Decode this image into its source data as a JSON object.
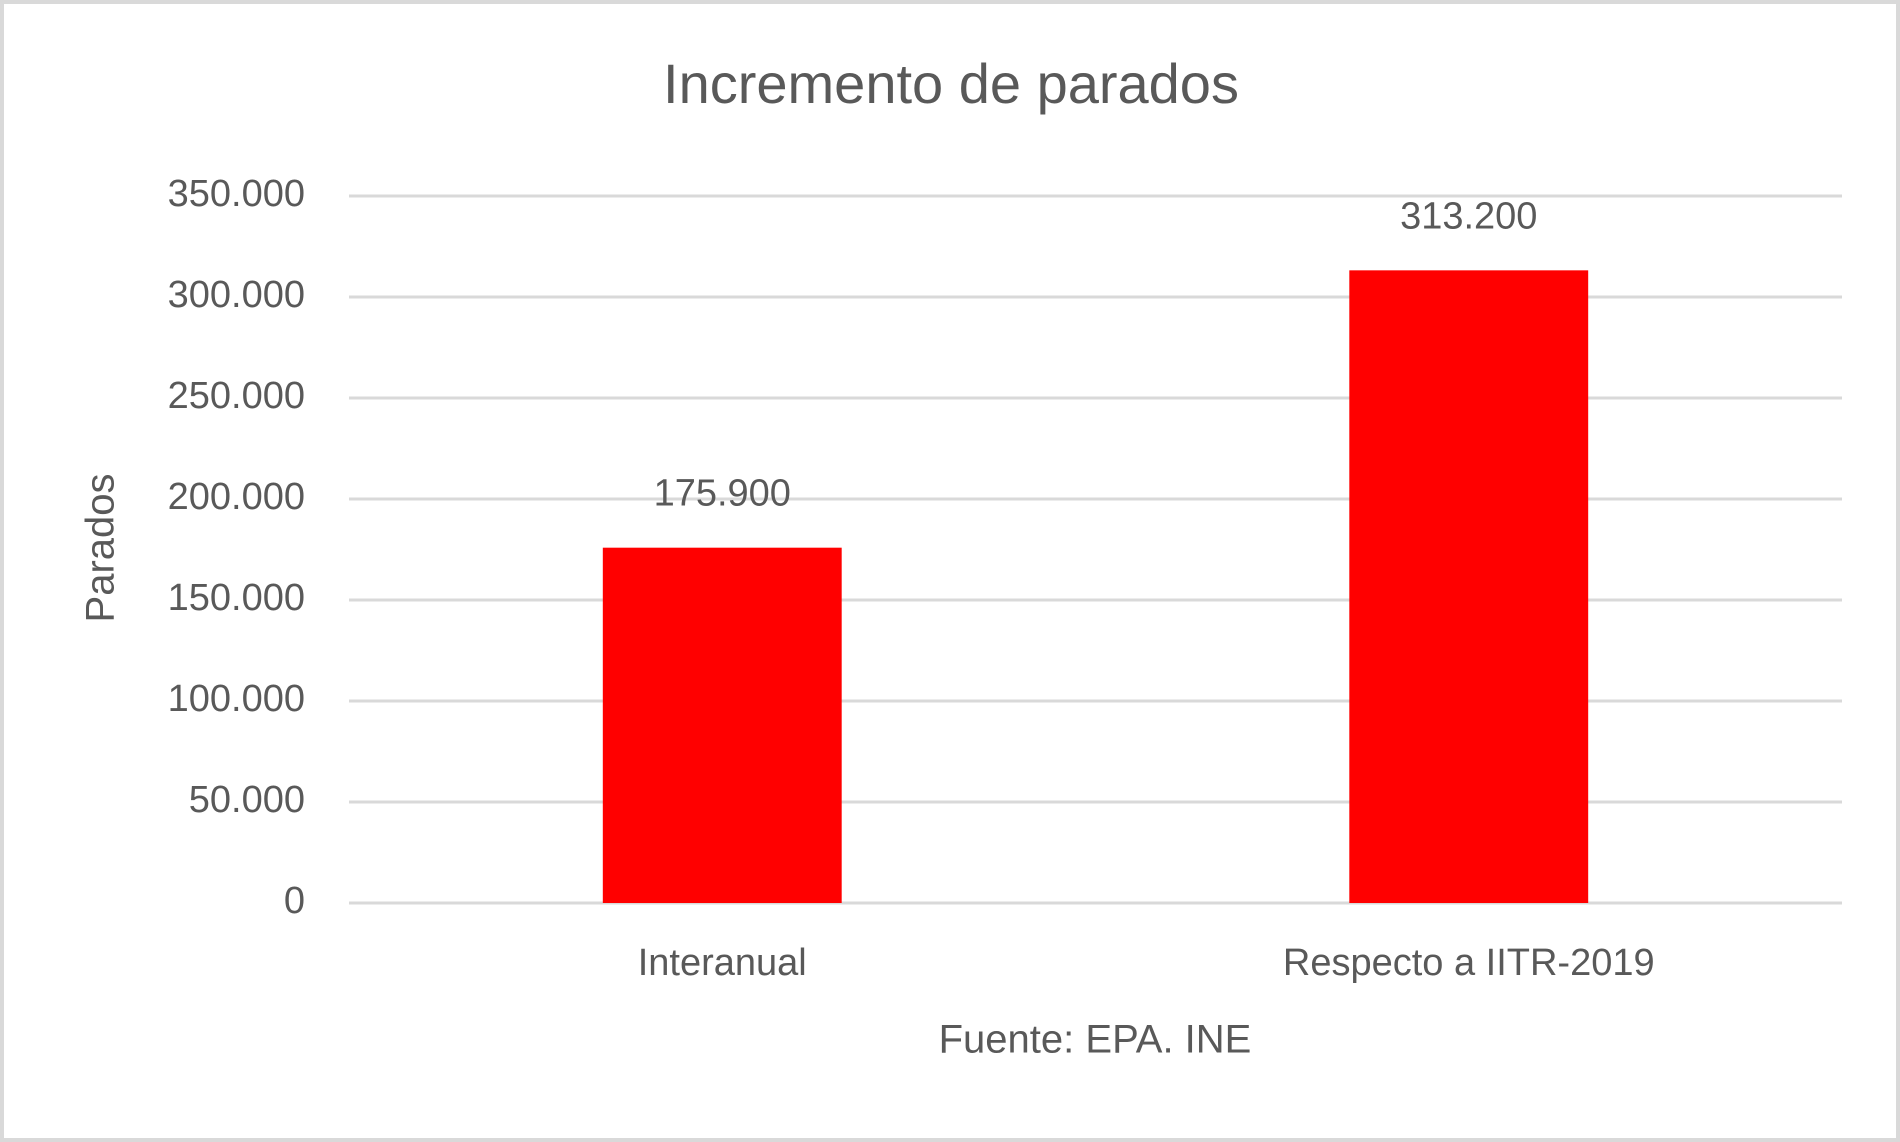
{
  "chart_data": {
    "type": "bar",
    "title": "Incremento de parados",
    "ylabel": "Parados",
    "xlabel": "Fuente: EPA. INE",
    "categories": [
      "Interanual",
      "Respecto a IITR-2019"
    ],
    "values": [
      175900,
      313200
    ],
    "value_labels": [
      "175.900",
      "313.200"
    ],
    "color": "#ff0000",
    "ylim": [
      0,
      350000
    ],
    "yticks": [
      0,
      {
        "value": 50000,
        "label": "50.000"
      },
      {
        "value": 100000,
        "label": "100.000"
      },
      {
        "value": 150000,
        "label": "150.000"
      },
      {
        "value": 200000,
        "label": "200.000"
      },
      {
        "value": 250000,
        "label": "250.000"
      },
      {
        "value": 300000,
        "label": "300.000"
      },
      {
        "value": 350000,
        "label": "350.000"
      }
    ],
    "grid": true
  }
}
